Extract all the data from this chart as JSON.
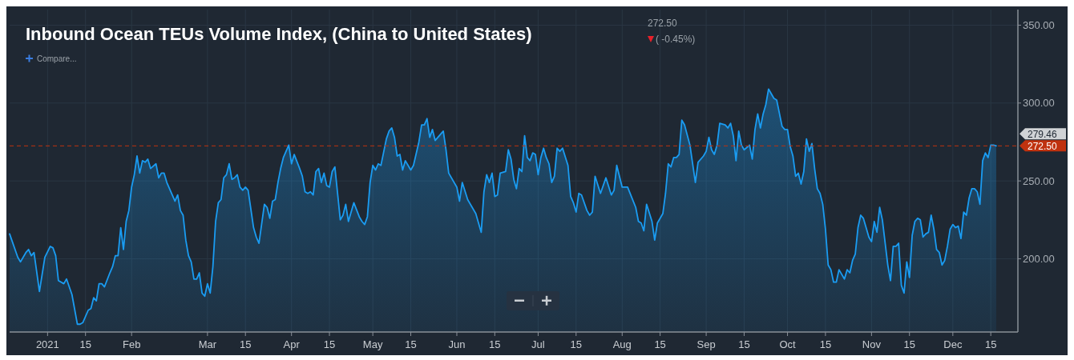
{
  "chart_data": {
    "type": "area",
    "title": "Inbound Ocean TEUs Volume Index, (China to United States)",
    "annotations": [
      "272.50",
      "( -0.45%)",
      "Compare...",
      "279.46"
    ],
    "x": [
      "2020-12-18",
      "2020-12-21",
      "2020-12-22",
      "2020-12-24",
      "2020-12-25",
      "2020-12-26",
      "2020-12-27",
      "2020-12-29",
      "2020-12-31",
      "2021-01-02",
      "2021-01-03",
      "2021-01-04",
      "2021-01-05",
      "2021-01-07",
      "2021-01-08",
      "2021-01-10",
      "2021-01-12",
      "2021-01-13",
      "2021-01-14",
      "2021-01-16",
      "2021-01-17",
      "2021-01-18",
      "2021-01-19",
      "2021-01-20",
      "2021-01-21",
      "2021-01-22",
      "2021-01-24",
      "2021-01-25",
      "2021-01-26",
      "2021-01-27",
      "2021-01-28",
      "2021-01-29",
      "2021-01-30",
      "2021-01-31",
      "2021-02-01",
      "2021-02-02",
      "2021-02-03",
      "2021-02-04",
      "2021-02-05",
      "2021-02-06",
      "2021-02-07",
      "2021-02-08",
      "2021-02-10",
      "2021-02-11",
      "2021-02-12",
      "2021-02-13",
      "2021-02-14",
      "2021-02-16",
      "2021-02-17",
      "2021-02-18",
      "2021-02-19",
      "2021-02-20",
      "2021-02-21",
      "2021-02-22",
      "2021-02-23",
      "2021-02-24",
      "2021-02-25",
      "2021-02-26",
      "2021-02-27",
      "2021-02-28",
      "2021-03-01",
      "2021-03-02",
      "2021-03-03",
      "2021-03-04",
      "2021-03-05",
      "2021-03-06",
      "2021-03-07",
      "2021-03-08",
      "2021-03-09",
      "2021-03-10",
      "2021-03-11",
      "2021-03-12",
      "2021-03-13",
      "2021-03-14",
      "2021-03-15",
      "2021-03-16",
      "2021-03-18",
      "2021-03-19",
      "2021-03-20",
      "2021-03-22",
      "2021-03-23",
      "2021-03-24",
      "2021-03-25",
      "2021-03-26",
      "2021-03-27",
      "2021-03-28",
      "2021-03-29",
      "2021-03-31",
      "2021-04-01",
      "2021-04-02",
      "2021-04-04",
      "2021-04-05",
      "2021-04-06",
      "2021-04-07",
      "2021-04-08",
      "2021-04-09",
      "2021-04-10",
      "2021-04-11",
      "2021-04-12",
      "2021-04-13",
      "2021-04-14",
      "2021-04-15",
      "2021-04-16",
      "2021-04-17",
      "2021-04-19",
      "2021-04-20",
      "2021-04-21",
      "2021-04-22",
      "2021-04-24",
      "2021-04-26",
      "2021-04-27",
      "2021-04-28",
      "2021-04-29",
      "2021-04-30",
      "2021-05-01",
      "2021-05-02",
      "2021-05-03",
      "2021-05-04",
      "2021-05-06",
      "2021-05-07",
      "2021-05-08",
      "2021-05-09",
      "2021-05-10",
      "2021-05-11",
      "2021-05-12",
      "2021-05-13",
      "2021-05-15",
      "2021-05-16",
      "2021-05-18",
      "2021-05-19",
      "2021-05-20",
      "2021-05-21",
      "2021-05-22",
      "2021-05-23",
      "2021-05-24",
      "2021-05-27",
      "2021-05-28",
      "2021-05-29",
      "2021-06-01",
      "2021-06-02",
      "2021-06-03",
      "2021-06-05",
      "2021-06-08",
      "2021-06-10",
      "2021-06-11",
      "2021-06-12",
      "2021-06-13",
      "2021-06-14",
      "2021-06-15",
      "2021-06-16",
      "2021-06-17",
      "2021-06-19",
      "2021-06-20",
      "2021-06-21",
      "2021-06-22",
      "2021-06-23",
      "2021-06-24",
      "2021-06-25",
      "2021-06-26",
      "2021-06-27",
      "2021-06-28",
      "2021-06-29",
      "2021-06-30",
      "2021-07-01",
      "2021-07-02",
      "2021-07-03",
      "2021-07-04",
      "2021-07-05",
      "2021-07-06",
      "2021-07-07",
      "2021-07-08",
      "2021-07-09",
      "2021-07-10",
      "2021-07-12",
      "2021-07-13",
      "2021-07-14",
      "2021-07-15",
      "2021-07-16",
      "2021-07-17",
      "2021-07-19",
      "2021-07-20",
      "2021-07-21",
      "2021-07-22",
      "2021-07-24",
      "2021-07-26",
      "2021-07-28",
      "2021-07-29",
      "2021-07-30",
      "2021-08-01",
      "2021-08-03",
      "2021-08-06",
      "2021-08-07",
      "2021-08-08",
      "2021-08-09",
      "2021-08-10",
      "2021-08-12",
      "2021-08-13",
      "2021-08-14",
      "2021-08-16",
      "2021-08-17",
      "2021-08-18",
      "2021-08-19",
      "2021-08-20",
      "2021-08-21",
      "2021-08-22",
      "2021-08-23",
      "2021-08-24",
      "2021-08-26",
      "2021-08-28",
      "2021-08-29",
      "2021-08-31",
      "2021-09-01",
      "2021-09-02",
      "2021-09-03",
      "2021-09-04",
      "2021-09-05",
      "2021-09-06",
      "2021-09-08",
      "2021-09-09",
      "2021-09-10",
      "2021-09-11",
      "2021-09-12",
      "2021-09-13",
      "2021-09-14",
      "2021-09-15",
      "2021-09-17",
      "2021-09-18",
      "2021-09-19",
      "2021-09-20",
      "2021-09-21",
      "2021-09-22",
      "2021-09-23",
      "2021-09-24",
      "2021-09-26",
      "2021-09-27",
      "2021-09-29",
      "2021-09-30",
      "2021-10-01",
      "2021-10-02",
      "2021-10-03",
      "2021-10-04",
      "2021-10-05",
      "2021-10-06",
      "2021-10-07",
      "2021-10-08",
      "2021-10-09",
      "2021-10-10",
      "2021-10-11",
      "2021-10-12",
      "2021-10-13",
      "2021-10-14",
      "2021-10-15",
      "2021-10-16",
      "2021-10-17",
      "2021-10-18",
      "2021-10-19",
      "2021-10-20",
      "2021-10-22",
      "2021-10-23",
      "2021-10-24",
      "2021-10-25",
      "2021-10-26",
      "2021-10-27",
      "2021-10-28",
      "2021-10-29",
      "2021-10-30",
      "2021-10-31",
      "2021-11-01",
      "2021-11-02",
      "2021-11-03",
      "2021-11-04",
      "2021-11-05",
      "2021-11-07",
      "2021-11-08",
      "2021-11-09",
      "2021-11-10",
      "2021-11-11",
      "2021-11-12",
      "2021-11-13",
      "2021-11-14",
      "2021-11-15",
      "2021-11-16",
      "2021-11-17",
      "2021-11-18",
      "2021-11-19",
      "2021-11-20",
      "2021-11-21",
      "2021-11-22",
      "2021-11-23",
      "2021-11-24",
      "2021-11-25",
      "2021-11-26",
      "2021-11-27",
      "2021-11-28",
      "2021-11-29",
      "2021-11-30",
      "2021-12-01",
      "2021-12-02",
      "2021-12-03",
      "2021-12-04",
      "2021-12-05",
      "2021-12-06",
      "2021-12-07",
      "2021-12-08",
      "2021-12-09",
      "2021-12-10",
      "2021-12-11",
      "2021-12-12",
      "2021-12-13",
      "2021-12-14",
      "2021-12-15",
      "2021-12-16",
      "2021-12-17"
    ],
    "series": [
      {
        "color": "#1a9cf2",
        "values": [
          216,
          201,
          198,
          204,
          206,
          202,
          204,
          179,
          201,
          208,
          207,
          202,
          186,
          184,
          187,
          177,
          158,
          158,
          159,
          167,
          168,
          175,
          173,
          184,
          184,
          182,
          191,
          195,
          202,
          202,
          220,
          206,
          224,
          231,
          246,
          254,
          266,
          255,
          263,
          262,
          264,
          258,
          261,
          252,
          255,
          255,
          249,
          241,
          237,
          241,
          231,
          228,
          212,
          202,
          198,
          187,
          187,
          191,
          178,
          176,
          184,
          178,
          195,
          224,
          236,
          238,
          252,
          254,
          261,
          251,
          252,
          254,
          246,
          244,
          246,
          244,
          220,
          214,
          210,
          235,
          233,
          226,
          237,
          238,
          249,
          258,
          265,
          273,
          261,
          267,
          258,
          253,
          243,
          242,
          243,
          241,
          256,
          258,
          249,
          255,
          247,
          246,
          256,
          259,
          225,
          228,
          235,
          224,
          236,
          227,
          224,
          222,
          227,
          249,
          260,
          257,
          261,
          260,
          277,
          282,
          284,
          278,
          266,
          267,
          257,
          263,
          257,
          260,
          275,
          286,
          286,
          290,
          278,
          283,
          276,
          282,
          270,
          255,
          246,
          237,
          249,
          238,
          229,
          217,
          243,
          254,
          249,
          255,
          240,
          241,
          255,
          256,
          270,
          264,
          251,
          245,
          258,
          256,
          279,
          265,
          263,
          268,
          267,
          254,
          265,
          271,
          265,
          261,
          249,
          253,
          271,
          269,
          271,
          260,
          240,
          236,
          230,
          242,
          241,
          231,
          228,
          230,
          253,
          242,
          252,
          241,
          244,
          260,
          246,
          246,
          233,
          224,
          223,
          218,
          235,
          224,
          212,
          223,
          229,
          242,
          261,
          259,
          265,
          265,
          267,
          289,
          286,
          273,
          249,
          262,
          266,
          269,
          278,
          270,
          267,
          273,
          287,
          286,
          284,
          287,
          279,
          263,
          282,
          273,
          270,
          273,
          264,
          283,
          293,
          284,
          293,
          299,
          309,
          303,
          302,
          285,
          283,
          283,
          272,
          266,
          253,
          255,
          248,
          256,
          277,
          269,
          274,
          258,
          245,
          242,
          235,
          219,
          196,
          193,
          185,
          185,
          193,
          187,
          193,
          191,
          199,
          203,
          220,
          228,
          226,
          220,
          214,
          211,
          224,
          217,
          233,
          225,
          196,
          186,
          208,
          208,
          210,
          183,
          178,
          198,
          188,
          215,
          224,
          226,
          225,
          214,
          216,
          217,
          228,
          219,
          206,
          204,
          196,
          199,
          208,
          219,
          222,
          220,
          221,
          213,
          230,
          228,
          239,
          245,
          245,
          243,
          235,
          263,
          268,
          265,
          273,
          273,
          272.5
        ]
      }
    ],
    "xlim": [
      "2020-12-18",
      "2021-12-25"
    ],
    "xticks": [
      {
        "value": "2021-01-01",
        "label": "2021"
      },
      {
        "value": "2021-01-15",
        "label": "15"
      },
      {
        "value": "2021-02-01",
        "label": "Feb"
      },
      {
        "value": "2021-03-01",
        "label": "Mar"
      },
      {
        "value": "2021-03-15",
        "label": "15"
      },
      {
        "value": "2021-04-01",
        "label": "Apr"
      },
      {
        "value": "2021-04-15",
        "label": "15"
      },
      {
        "value": "2021-05-01",
        "label": "May"
      },
      {
        "value": "2021-05-15",
        "label": "15"
      },
      {
        "value": "2021-06-01",
        "label": "Jun"
      },
      {
        "value": "2021-06-15",
        "label": "15"
      },
      {
        "value": "2021-07-01",
        "label": "Jul"
      },
      {
        "value": "2021-07-15",
        "label": "15"
      },
      {
        "value": "2021-08-01",
        "label": "Aug"
      },
      {
        "value": "2021-08-15",
        "label": "15"
      },
      {
        "value": "2021-09-01",
        "label": "Sep"
      },
      {
        "value": "2021-09-15",
        "label": "15"
      },
      {
        "value": "2021-10-01",
        "label": "Oct"
      },
      {
        "value": "2021-10-15",
        "label": "15"
      },
      {
        "value": "2021-11-01",
        "label": "Nov"
      },
      {
        "value": "2021-11-15",
        "label": "15"
      },
      {
        "value": "2021-12-01",
        "label": "Dec"
      },
      {
        "value": "2021-12-15",
        "label": "15"
      }
    ],
    "ylim": [
      153,
      360
    ],
    "yticks": [
      {
        "value": 200,
        "label": "200.00"
      },
      {
        "value": 250,
        "label": "250.00"
      },
      {
        "value": 300,
        "label": "300.00"
      },
      {
        "value": 350,
        "label": "350.00"
      }
    ],
    "ref_lines": [
      {
        "axis": "y",
        "value": 272.5,
        "label": "272.50",
        "color": "#c0320f",
        "line_style": "dashed"
      }
    ],
    "grid": true,
    "marker": "none",
    "line_style": "solid"
  }
}
